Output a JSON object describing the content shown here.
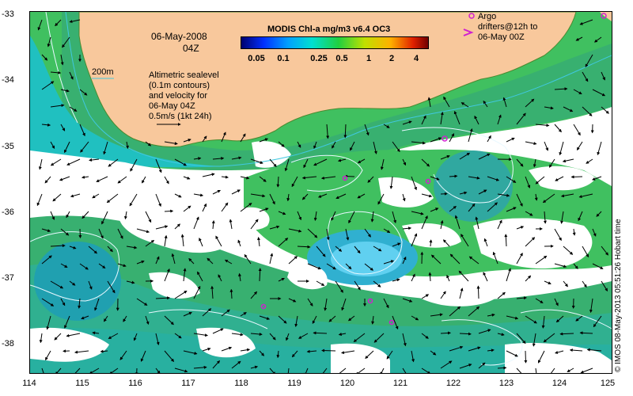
{
  "map": {
    "date": "06-May-2008",
    "time": "04Z",
    "contour_label": "200m",
    "legend_lines": [
      "Altimetric sealevel",
      "(0.1m contours)",
      "and velocity for",
      "06-May 04Z",
      "0.5m/s (1kt 24h)"
    ],
    "argo_legend": [
      "Argo",
      "drifters@12h to",
      "06-May 00Z"
    ],
    "colorbar": {
      "title": "MODIS Chl-a mg/m3 v6.4 OC3",
      "ticks": [
        "0.05",
        "0.1",
        "0.25",
        "0.5",
        "1",
        "2",
        "4"
      ]
    },
    "credit": "© IMOS 08-May-2013 05:51:26 Hobart time",
    "lat_ticks": [
      "-33",
      "-34",
      "-35",
      "-36",
      "-37",
      "-38"
    ],
    "lon_ticks": [
      "114",
      "115",
      "116",
      "117",
      "118",
      "119",
      "120",
      "121",
      "122",
      "123",
      "124",
      "125"
    ],
    "colors": {
      "land": "#f8c89c",
      "argo": "#d020d0",
      "contour": "#e8f8ff",
      "isobath": "#40c8e0"
    }
  }
}
